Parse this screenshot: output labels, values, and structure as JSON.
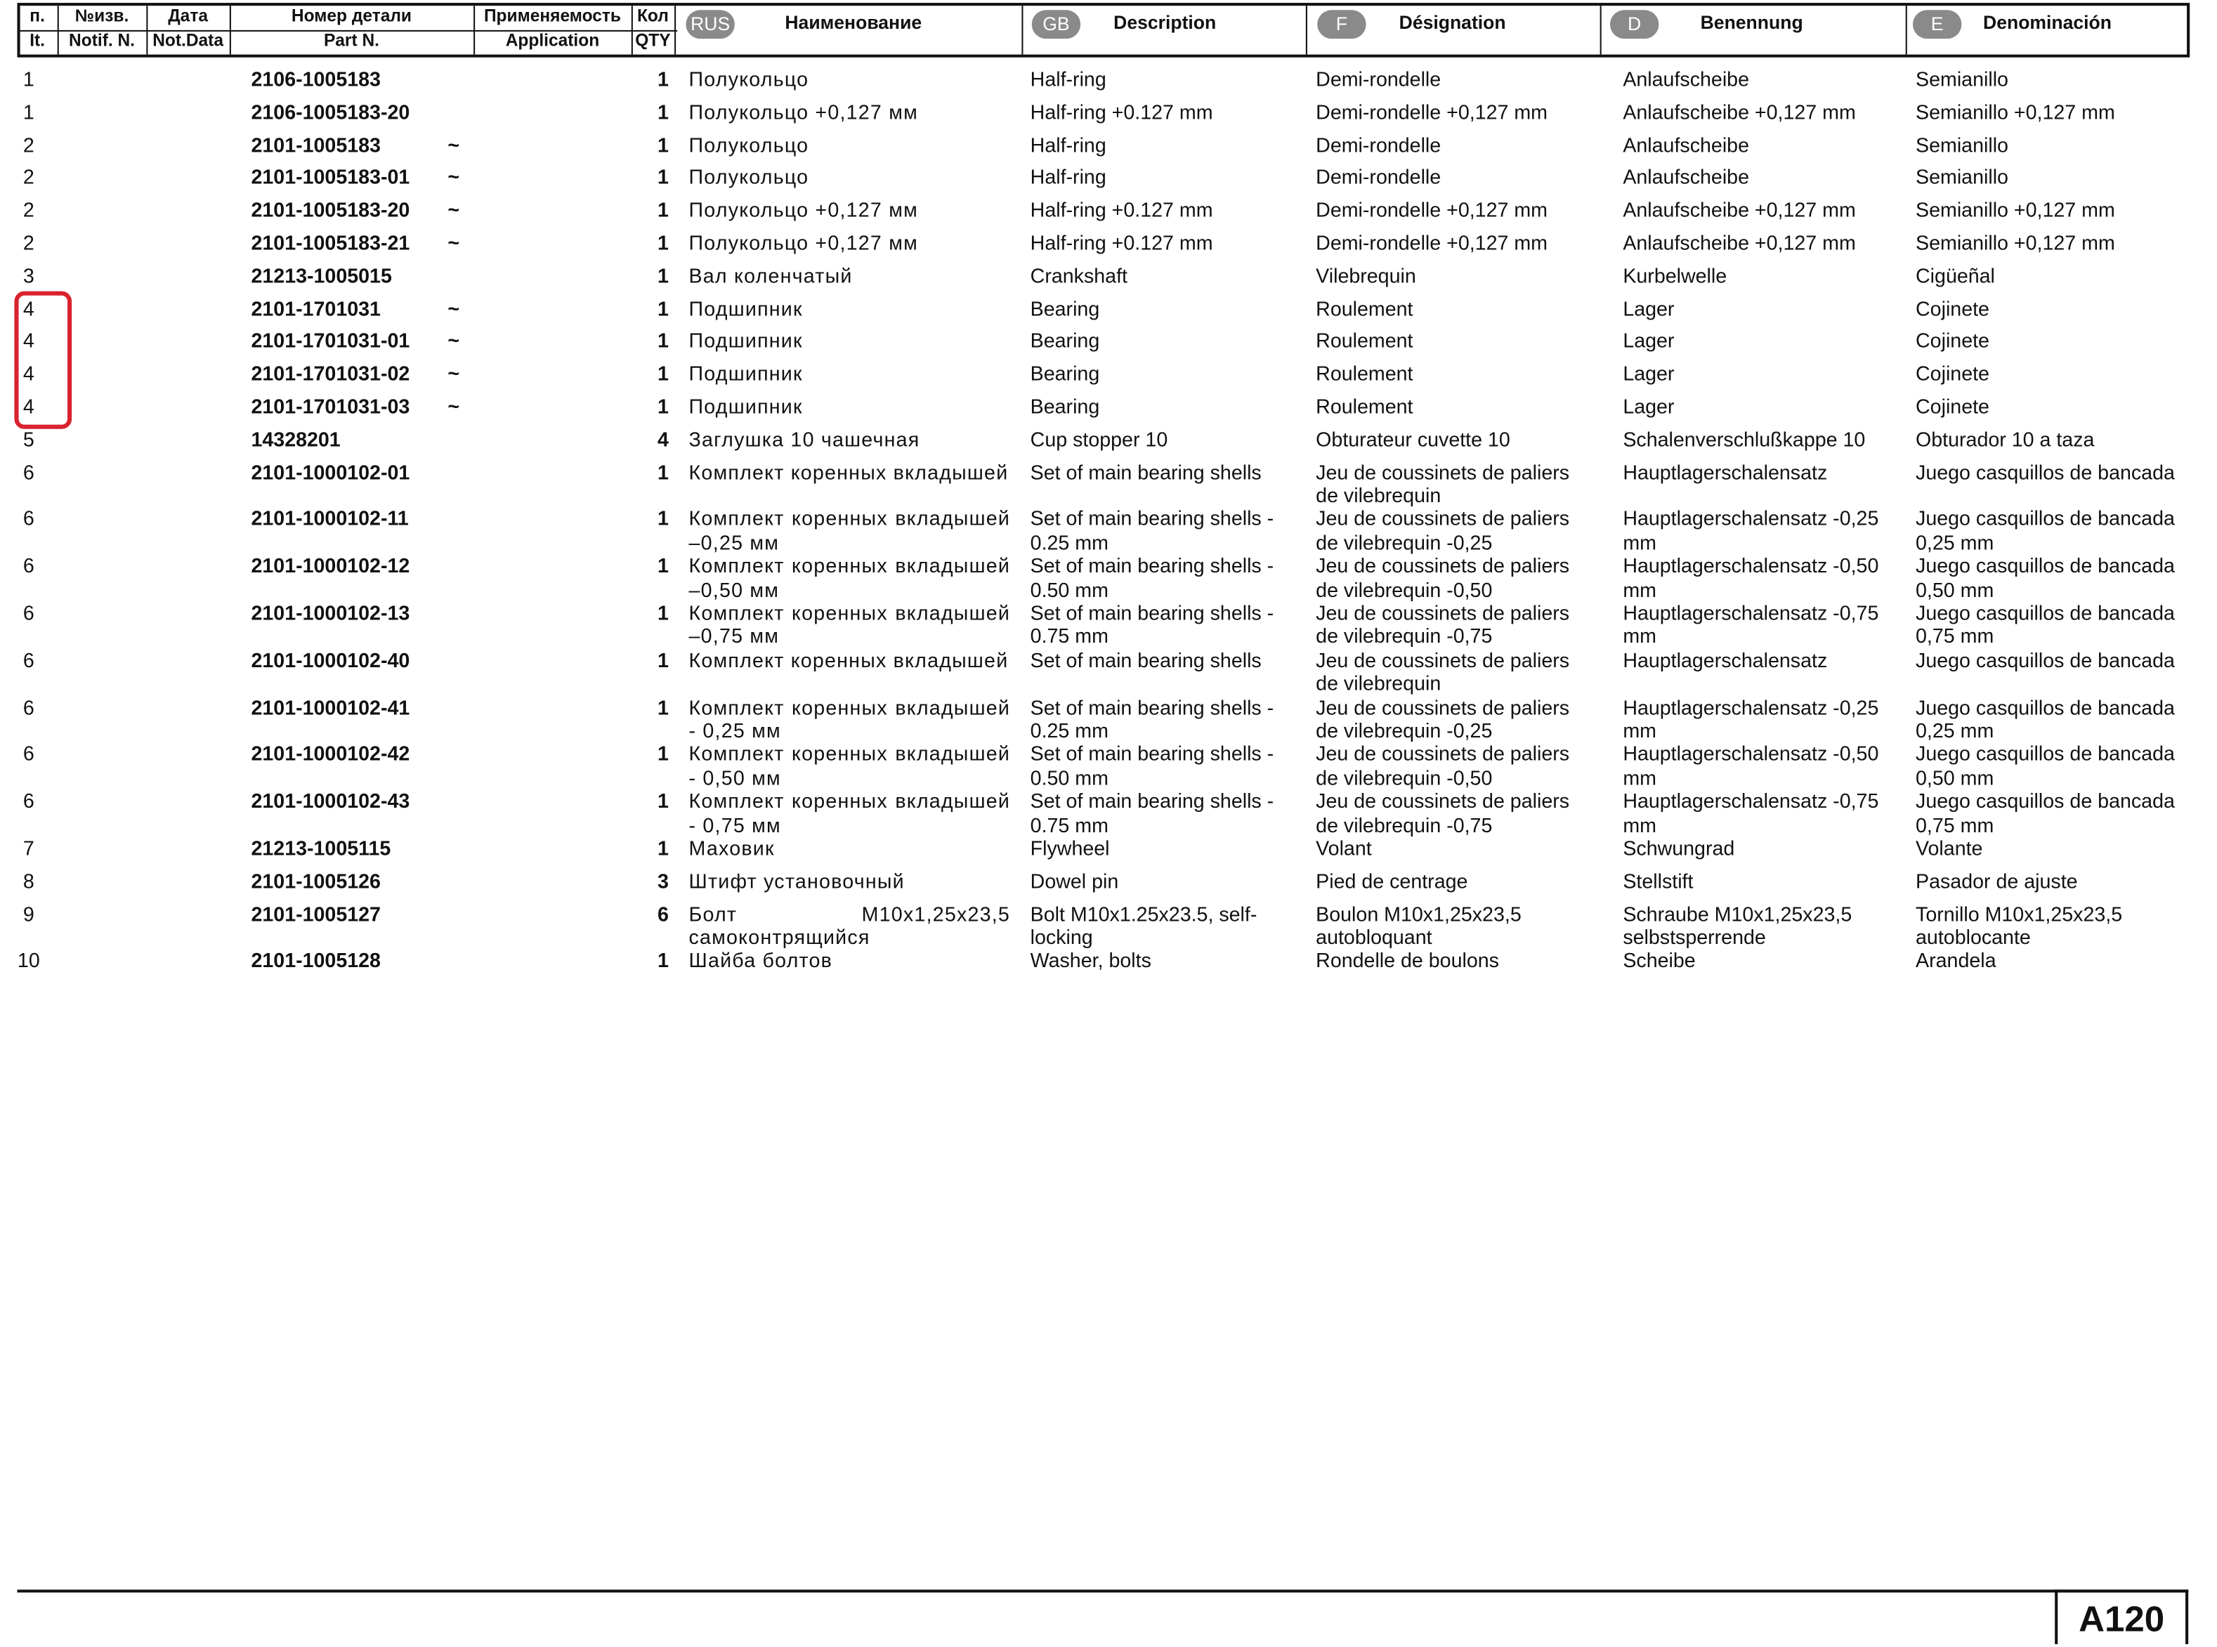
{
  "header": {
    "top": [
      "п.",
      "№изв.",
      "Дата",
      "Номер детали",
      "Применяемость",
      "Кол"
    ],
    "bottom": [
      "It.",
      "Notif. N.",
      "Not.Data",
      "Part N.",
      "Application",
      "QTY"
    ],
    "languages": [
      {
        "code": "RUS",
        "title": "Наименование"
      },
      {
        "code": "GB",
        "title": "Description"
      },
      {
        "code": "F",
        "title": "Désignation"
      },
      {
        "code": "D",
        "title": "Benennung"
      },
      {
        "code": "E",
        "title": "Denominación"
      }
    ]
  },
  "rows": [
    {
      "it": "1",
      "part": "2106-1005183",
      "qty": "1",
      "rus": "Полукольцо",
      "gb": "Half-ring",
      "f": "Demi-rondelle",
      "d": "Anlaufscheibe",
      "e": "Semianillo"
    },
    {
      "it": "1",
      "part": "2106-1005183-20",
      "qty": "1",
      "rus": "Полукольцо +0,127 мм",
      "gb": "Half-ring +0.127 mm",
      "f": "Demi-rondelle +0,127 mm",
      "d": "Anlaufscheibe +0,127 mm",
      "e": "Semianillo +0,127 mm"
    },
    {
      "it": "2",
      "part": "2101-1005183",
      "app": "~",
      "qty": "1",
      "rus": "Полукольцо",
      "gb": "Half-ring",
      "f": "Demi-rondelle",
      "d": "Anlaufscheibe",
      "e": "Semianillo"
    },
    {
      "it": "2",
      "part": "2101-1005183-01",
      "app": "~",
      "qty": "1",
      "rus": "Полукольцо",
      "gb": "Half-ring",
      "f": "Demi-rondelle",
      "d": "Anlaufscheibe",
      "e": "Semianillo"
    },
    {
      "it": "2",
      "part": "2101-1005183-20",
      "app": "~",
      "qty": "1",
      "rus": "Полукольцо +0,127 мм",
      "gb": "Half-ring +0.127 mm",
      "f": "Demi-rondelle +0,127 mm",
      "d": "Anlaufscheibe +0,127 mm",
      "e": "Semianillo +0,127 mm"
    },
    {
      "it": "2",
      "part": "2101-1005183-21",
      "app": "~",
      "qty": "1",
      "rus": "Полукольцо +0,127 мм",
      "gb": "Half-ring +0.127 mm",
      "f": "Demi-rondelle +0,127 mm",
      "d": "Anlaufscheibe +0,127 mm",
      "e": "Semianillo +0,127 mm"
    },
    {
      "it": "3",
      "part": "21213-1005015",
      "qty": "1",
      "rus": "Вал коленчатый",
      "gb": "Crankshaft",
      "f": "Vilebrequin",
      "d": "Kurbelwelle",
      "e": "Cigüeñal"
    },
    {
      "it": "4",
      "part": "2101-1701031",
      "app": "~",
      "qty": "1",
      "rus": "Подшипник",
      "gb": "Bearing",
      "f": "Roulement",
      "d": "Lager",
      "e": "Cojinete"
    },
    {
      "it": "4",
      "part": "2101-1701031-01",
      "app": "~",
      "qty": "1",
      "rus": "Подшипник",
      "gb": "Bearing",
      "f": "Roulement",
      "d": "Lager",
      "e": "Cojinete"
    },
    {
      "it": "4",
      "part": "2101-1701031-02",
      "app": "~",
      "qty": "1",
      "rus": "Подшипник",
      "gb": "Bearing",
      "f": "Roulement",
      "d": "Lager",
      "e": "Cojinete"
    },
    {
      "it": "4",
      "part": "2101-1701031-03",
      "app": "~",
      "qty": "1",
      "rus": "Подшипник",
      "gb": "Bearing",
      "f": "Roulement",
      "d": "Lager",
      "e": "Cojinete"
    },
    {
      "it": "5",
      "part": "14328201",
      "qty": "4",
      "rus": "Заглушка 10 чашечная",
      "gb": "Cup stopper 10",
      "f": "Obturateur cuvette 10",
      "d": "Schalenverschlußkappe 10",
      "e": "Obturador 10 a taza"
    },
    {
      "it": "6",
      "part": "2101-1000102-01",
      "qty": "1",
      "rus": "Комплект коренных вкладышей",
      "gb": "Set of main bearing shells",
      "f": "Jeu de coussinets de paliers de vilebrequin",
      "d": "Hauptlagerschalensatz",
      "e": "Juego casquillos de bancada"
    },
    {
      "it": "6",
      "part": "2101-1000102-11",
      "qty": "1",
      "rus": "Комплект коренных вкладышей –0,25 мм",
      "gb": "Set of main bearing shells - 0.25 mm",
      "f": "Jeu de coussinets de paliers de vilebrequin -0,25",
      "d": "Hauptlagerschalensatz -0,25 mm",
      "e": "Juego casquillos de bancada 0,25 mm"
    },
    {
      "it": "6",
      "part": "2101-1000102-12",
      "qty": "1",
      "rus": "Комплект коренных вкладышей –0,50 мм",
      "gb": "Set of main bearing shells - 0.50 mm",
      "f": "Jeu de coussinets de paliers de vilebrequin -0,50",
      "d": "Hauptlagerschalensatz -0,50 mm",
      "e": "Juego casquillos de bancada 0,50 mm"
    },
    {
      "it": "6",
      "part": "2101-1000102-13",
      "qty": "1",
      "rus": "Комплект коренных вкладышей –0,75 мм",
      "gb": "Set of main bearing shells - 0.75 mm",
      "f": "Jeu de coussinets de paliers de vilebrequin -0,75",
      "d": "Hauptlagerschalensatz -0,75 mm",
      "e": "Juego casquillos de bancada 0,75 mm"
    },
    {
      "it": "6",
      "part": "2101-1000102-40",
      "qty": "1",
      "rus": "Комплект коренных вкладышей",
      "gb": "Set of main bearing shells",
      "f": "Jeu de coussinets de paliers de vilebrequin",
      "d": "Hauptlagerschalensatz",
      "e": "Juego casquillos de bancada"
    },
    {
      "it": "6",
      "part": "2101-1000102-41",
      "qty": "1",
      "rus": "Комплект коренных вкладышей - 0,25 мм",
      "gb": "Set of main bearing shells - 0.25 mm",
      "f": "Jeu de coussinets de paliers de vilebrequin -0,25",
      "d": "Hauptlagerschalensatz -0,25 mm",
      "e": "Juego casquillos de bancada 0,25 mm"
    },
    {
      "it": "6",
      "part": "2101-1000102-42",
      "qty": "1",
      "rus": "Комплект коренных вкладышей - 0,50 мм",
      "gb": "Set of main bearing shells - 0.50 mm",
      "f": "Jeu de coussinets de paliers de vilebrequin -0,50",
      "d": "Hauptlagerschalensatz -0,50 mm",
      "e": "Juego casquillos de bancada 0,50 mm"
    },
    {
      "it": "6",
      "part": "2101-1000102-43",
      "qty": "1",
      "rus": "Комплект коренных вкладышей - 0,75 мм",
      "gb": "Set of main bearing shells - 0.75 mm",
      "f": "Jeu de coussinets de paliers de vilebrequin -0,75",
      "d": "Hauptlagerschalensatz -0,75 mm",
      "e": "Juego casquillos de bancada 0,75 mm"
    },
    {
      "it": "7",
      "part": "21213-1005115",
      "qty": "1",
      "rus": "Маховик",
      "gb": "Flywheel",
      "f": "Volant",
      "d": "Schwungrad",
      "e": "Volante"
    },
    {
      "it": "8",
      "part": "2101-1005126",
      "qty": "3",
      "rus": "Штифт установочный",
      "gb": "Dowel pin",
      "f": "Pied de centrage",
      "d": "Stellstift",
      "e": "Pasador de ajuste"
    },
    {
      "it": "9",
      "part": "2101-1005127",
      "qty": "6",
      "rus": "Болт M10x1,25x23,5 самоконтрящийся",
      "gb": "Bolt M10x1.25x23.5, self-locking",
      "f": "Boulon M10x1,25x23,5 autobloquant",
      "d": "Schraube M10x1,25x23,5 selbstsperrende",
      "e": "Tornillo M10x1,25x23,5 autoblocante"
    },
    {
      "it": "10",
      "part": "2101-1005128",
      "qty": "1",
      "rus": "Шайба болтов",
      "gb": "Washer, bolts",
      "f": "Rondelle de boulons",
      "d": "Scheibe",
      "e": "Arandela"
    }
  ],
  "page": "A120"
}
